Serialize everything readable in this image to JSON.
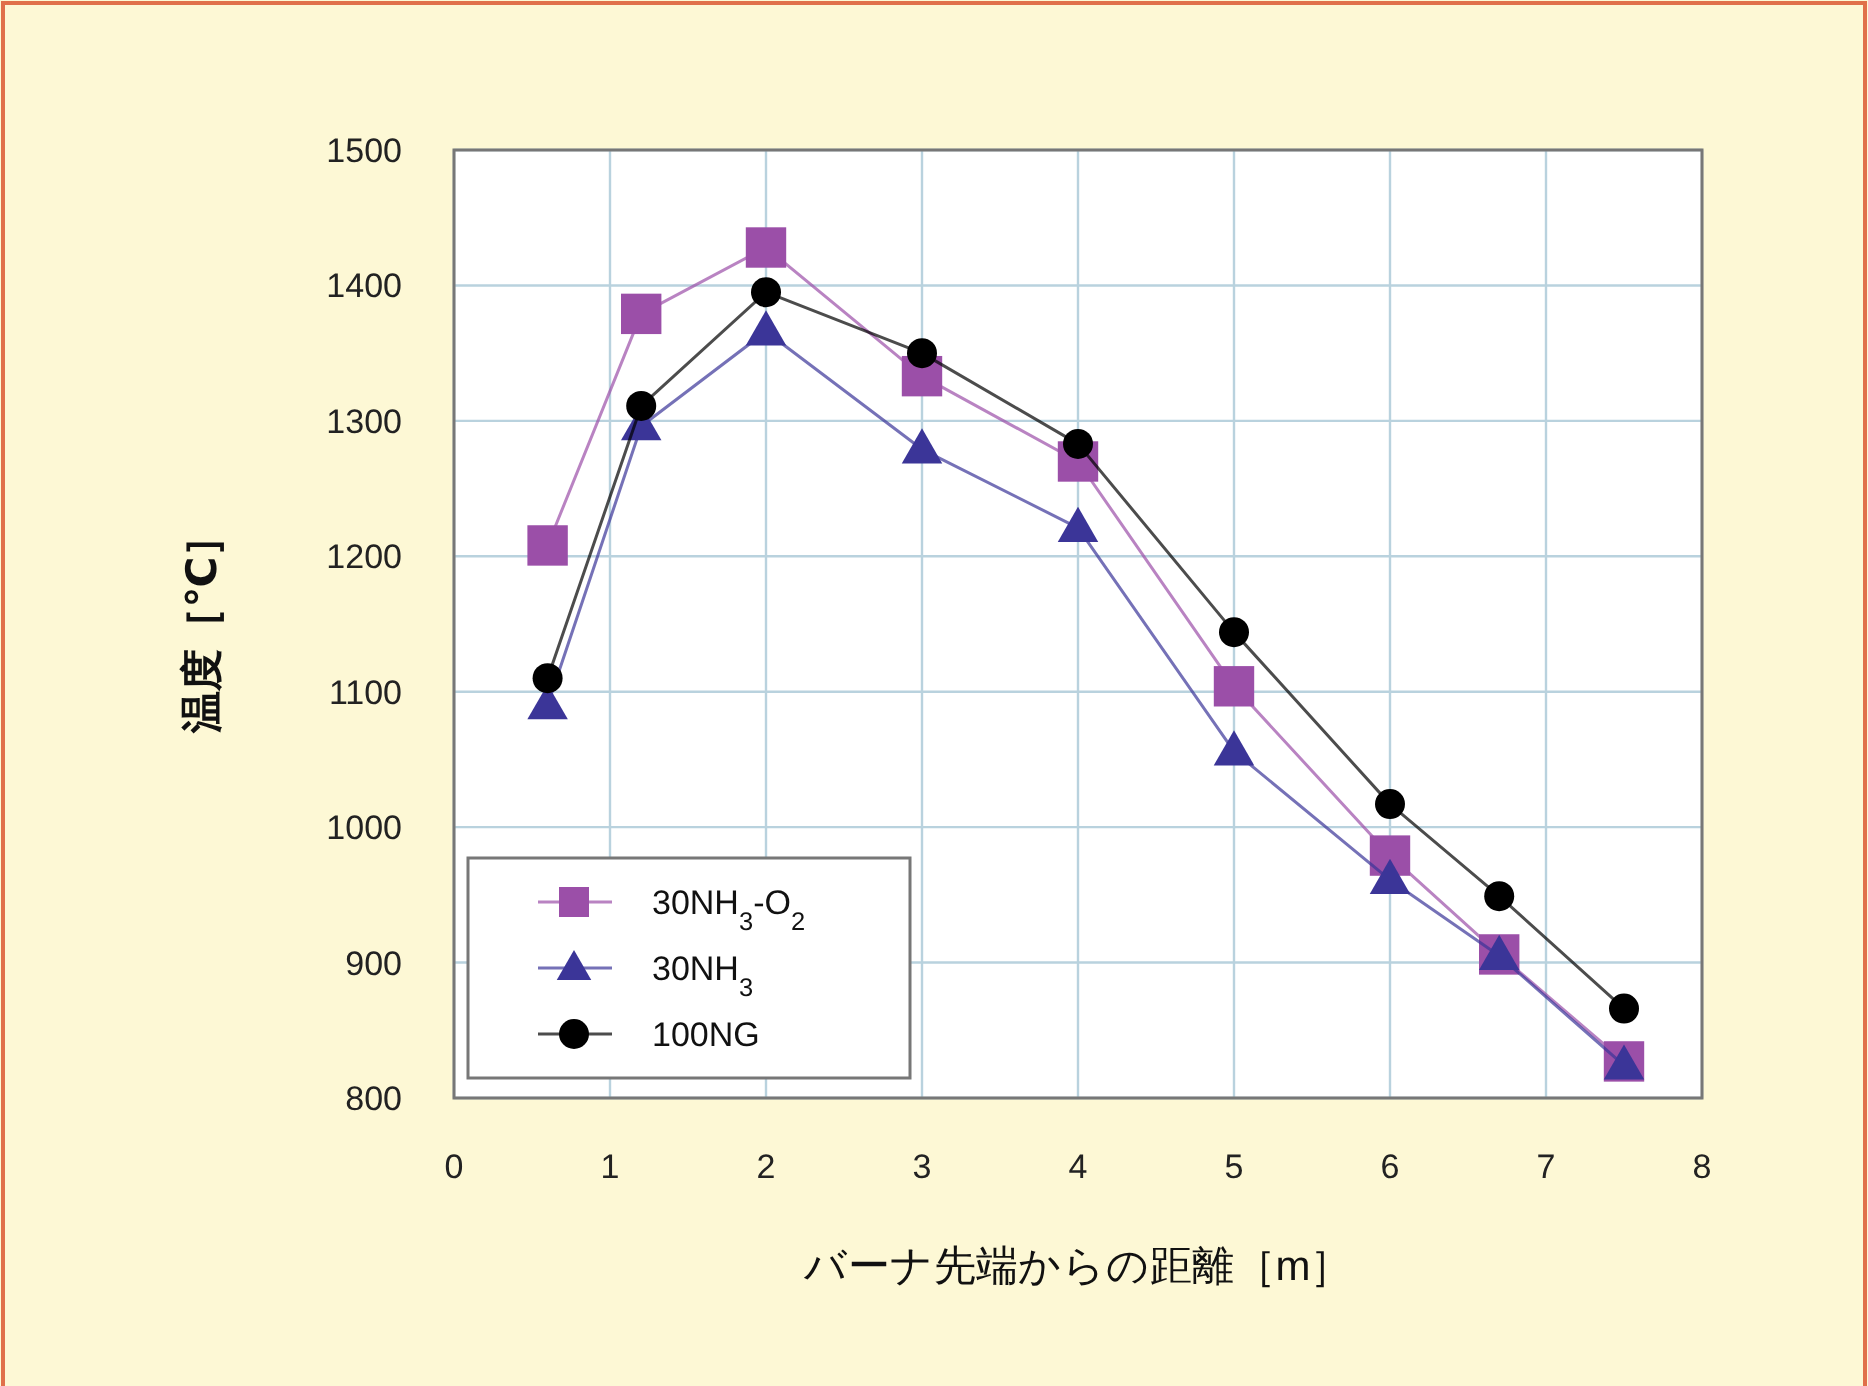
{
  "chart_data": {
    "type": "line",
    "xlabel": "バーナ先端からの距離［m］",
    "ylabel": "温度［℃］",
    "xlim": [
      0,
      8
    ],
    "ylim": [
      800,
      1500
    ],
    "xticks": [
      0,
      1,
      2,
      3,
      4,
      5,
      6,
      7,
      8
    ],
    "yticks": [
      800,
      900,
      1000,
      1100,
      1200,
      1300,
      1400,
      1500
    ],
    "grid": true,
    "legend": "bottom left",
    "series": [
      {
        "name": "30NH$_{3}$-O$_{2}$",
        "color": "#9b4fa8",
        "marker": "square",
        "x": [
          0.6,
          1.2,
          2,
          3,
          4,
          5,
          6,
          6.7,
          7.5
        ],
        "values": [
          1208,
          1379,
          1428,
          1333,
          1270,
          1104,
          979,
          906,
          827
        ]
      },
      {
        "name": "30NH$_{3}$",
        "color": "#3b3598",
        "marker": "triangle",
        "x": [
          0.6,
          1.2,
          2,
          3,
          4,
          5,
          6,
          6.7,
          7.5
        ],
        "values": [
          1090,
          1296,
          1366,
          1279,
          1221,
          1056,
          961,
          905,
          824
        ]
      },
      {
        "name": "100NG",
        "color": "#000000",
        "marker": "circle",
        "x": [
          0.6,
          1.2,
          2,
          3,
          4,
          5,
          6,
          6.7,
          7.5
        ],
        "values": [
          1110,
          1311,
          1395,
          1350,
          1283,
          1144,
          1017,
          949,
          866
        ]
      }
    ]
  }
}
